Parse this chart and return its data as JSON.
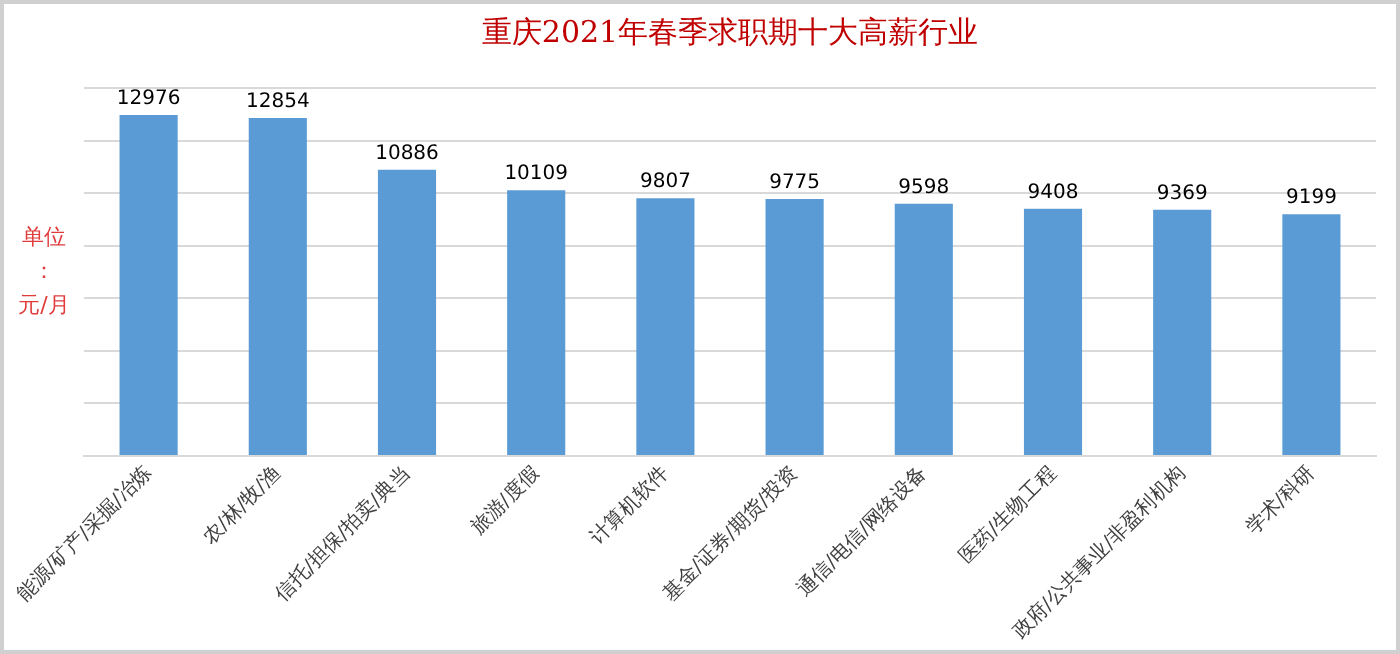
{
  "chart_data": {
    "type": "bar",
    "title": "重庆2021年春季求职期十大高薪行业",
    "ylabel": "单位：元/月",
    "categories": [
      "能源/矿产/采掘/冶炼",
      "农/林/牧/渔",
      "信托/担保/拍卖/典当",
      "旅游/度假",
      "计算机软件",
      "基金/证券/期货/投资",
      "通信/电信/网络设备",
      "医药/生物工程",
      "政府/公共事业/非盈利机构",
      "学术/科研"
    ],
    "values": [
      12976,
      12854,
      10886,
      10109,
      9807,
      9775,
      9598,
      9408,
      9369,
      9199
    ],
    "color": "#5b9bd5",
    "ylim": [
      0,
      14000
    ],
    "yticks": [
      {
        "value": 0,
        "label": null
      },
      {
        "value": 2000,
        "label": null
      },
      {
        "value": 4000,
        "label": null
      },
      {
        "value": 6000,
        "label": null
      },
      {
        "value": 8000,
        "label": null
      },
      {
        "value": 10000,
        "label": null
      },
      {
        "value": 12000,
        "label": null
      },
      {
        "value": 14000,
        "label": null
      }
    ],
    "tick_labels": "x",
    "grid": "y",
    "data_labels": true,
    "legend": false
  }
}
